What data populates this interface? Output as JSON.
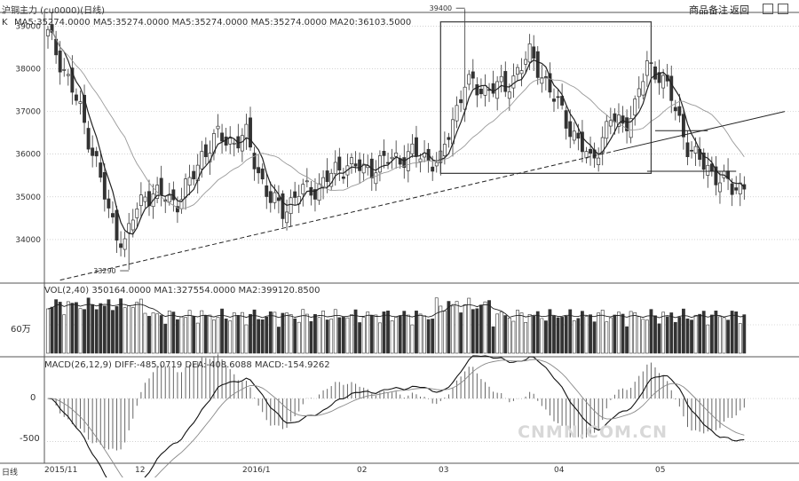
{
  "title_bar": {
    "instrument": "沪铜主力 (cu0000)(日线)",
    "right_buttons": [
      "商品备注",
      "返回"
    ],
    "win_icons": [
      "minimize-icon",
      "restore-icon"
    ]
  },
  "price_panel": {
    "prefix": "K",
    "ma_text": "MA5:35274.0000 MA5:35274.0000 MA5:35274.0000 MA5:35274.0000 MA20:36103.5000",
    "yticks": [
      34000,
      35000,
      36000,
      37000,
      38000,
      39000
    ],
    "ytick_labels": [
      "34000",
      "35000",
      "36000",
      "37000",
      "38000",
      "39000"
    ],
    "low_annotation": "33290",
    "high_annotation": "39400"
  },
  "volume_panel": {
    "header": "VOL(2,40) 350164.0000 MA1:327554.0000 MA2:399120.8500",
    "ytick_label": "60万"
  },
  "macd_panel": {
    "header": "MACD(26,12,9) DIFF:-485.0719 DEA:-408.6088 MACD:-154.9262",
    "ytick_labels": [
      "0",
      "-500"
    ]
  },
  "date_axis": {
    "prefix": "日线",
    "labels": [
      "2015/11",
      "12",
      "2016/1",
      "02",
      "03",
      "04",
      "05"
    ]
  },
  "watermark": "CNMN.COM.CN",
  "colors": {
    "up": "#ffffff",
    "down": "#333333",
    "line": "#222222",
    "grid": "#b8b8b8"
  },
  "chart_data": {
    "type": "candlestick",
    "title": "沪铜主力 (cu0000)(日线)",
    "x_range": [
      "2015-11",
      "2016-05"
    ],
    "y_range": [
      33000,
      39300
    ],
    "close_anchors": [
      [
        0,
        38800
      ],
      [
        4,
        38000
      ],
      [
        8,
        37000
      ],
      [
        12,
        35800
      ],
      [
        15,
        34600
      ],
      [
        17,
        34200
      ],
      [
        19,
        33900
      ],
      [
        21,
        34500
      ],
      [
        24,
        35100
      ],
      [
        28,
        35000
      ],
      [
        32,
        34900
      ],
      [
        35,
        35300
      ],
      [
        38,
        36000
      ],
      [
        42,
        36400
      ],
      [
        46,
        36300
      ],
      [
        49,
        36400
      ],
      [
        52,
        35600
      ],
      [
        55,
        34900
      ],
      [
        58,
        34700
      ],
      [
        62,
        35100
      ],
      [
        66,
        35200
      ],
      [
        70,
        35500
      ],
      [
        74,
        35800
      ],
      [
        78,
        35600
      ],
      [
        82,
        35800
      ],
      [
        86,
        35900
      ],
      [
        90,
        36000
      ],
      [
        94,
        35900
      ],
      [
        97,
        35800
      ],
      [
        100,
        36800
      ],
      [
        103,
        37700
      ],
      [
        106,
        37500
      ],
      [
        110,
        37600
      ],
      [
        113,
        37500
      ],
      [
        116,
        38000
      ],
      [
        119,
        38300
      ],
      [
        122,
        37900
      ],
      [
        125,
        37300
      ],
      [
        128,
        36800
      ],
      [
        131,
        36300
      ],
      [
        134,
        35800
      ],
      [
        136,
        36200
      ],
      [
        139,
        36800
      ],
      [
        142,
        36700
      ],
      [
        145,
        37100
      ],
      [
        148,
        38100
      ],
      [
        151,
        37900
      ],
      [
        154,
        37300
      ],
      [
        156,
        36800
      ],
      [
        158,
        36200
      ],
      [
        160,
        35900
      ],
      [
        163,
        35700
      ],
      [
        166,
        35400
      ],
      [
        169,
        35200
      ],
      [
        172,
        35300
      ]
    ],
    "candle_count": 173,
    "annotations": [
      {
        "text": "33290",
        "value": 33290
      },
      {
        "text": "39400",
        "value": 39400
      }
    ],
    "shapes": [
      {
        "type": "rectangle",
        "from_bar": 97,
        "to_bar": 149,
        "top": 39100,
        "bottom": 35550
      },
      {
        "type": "trendline",
        "from": [
          3,
          33050
        ],
        "to": [
          182,
          37000
        ],
        "style": "dashed-then-solid"
      },
      {
        "type": "horizontal",
        "from_bar": 150,
        "to_bar": 163,
        "value": 36550
      },
      {
        "type": "horizontal",
        "from_bar": 148,
        "to_bar": 170,
        "value": 35600
      }
    ],
    "volume_ytick": 600000,
    "macd_range": [
      -750,
      350
    ]
  }
}
